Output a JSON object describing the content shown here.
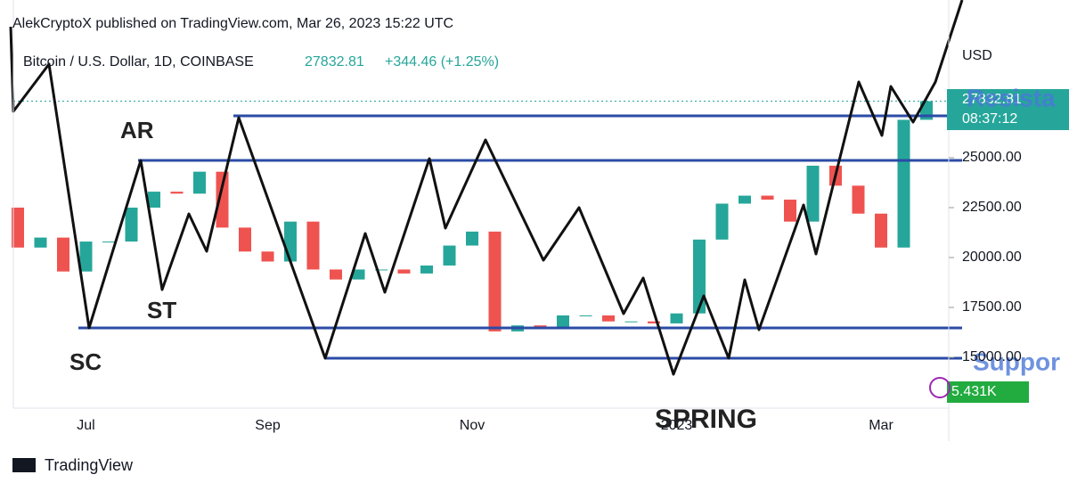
{
  "chart_data": {
    "type": "candlestick",
    "header": "AlekCryptoX published on TradingView.com, Mar 26, 2023 15:22 UTC",
    "symbol": "Bitcoin / U.S. Dollar, 1D, COINBASE",
    "change": "+344.46 (+1.25%)",
    "y_axis_label": "USD",
    "countdown": "08:37:12",
    "volume_label": "5.431K",
    "footer": "TradingView",
    "annotations": [
      "AR",
      "ST",
      "SC",
      "SPRING",
      "Resista",
      "Suppor"
    ],
    "categories": [
      null,
      null,
      null,
      "Jul",
      null,
      null,
      null,
      null,
      null,
      null,
      null,
      "Sep",
      null,
      null,
      null,
      null,
      null,
      null,
      null,
      null,
      "Nov",
      null,
      null,
      null,
      null,
      null,
      null,
      null,
      null,
      "2023",
      null,
      null,
      null,
      null,
      null,
      null,
      null,
      null,
      "Mar",
      null,
      null
    ],
    "open": [
      22500,
      20500,
      21000,
      19300,
      20800,
      20800,
      22500,
      23300,
      23200,
      24300,
      21500,
      20300,
      19800,
      21800,
      19400,
      18900,
      19400,
      19400,
      19200,
      19600,
      20600,
      21300,
      16300,
      16600,
      16500,
      17100,
      17100,
      16800,
      16800,
      16700,
      17200,
      20900,
      22700,
      23100,
      22900,
      21800,
      24600,
      23600,
      22200,
      20500,
      26900
    ],
    "close": [
      20500,
      21000,
      19300,
      20800,
      20800,
      22500,
      23300,
      23200,
      24300,
      21500,
      20300,
      19800,
      21800,
      19400,
      18900,
      19400,
      19400,
      19200,
      19600,
      20600,
      21300,
      16300,
      16600,
      16500,
      17100,
      17100,
      16800,
      16800,
      16700,
      17200,
      20900,
      22700,
      23100,
      22900,
      21800,
      24600,
      23600,
      22200,
      20500,
      26900,
      27832.81
    ],
    "up_color": "#26a69a",
    "down_color": "#ef5350",
    "ylim": [
      12455,
      32902
    ],
    "yticks": [
      {
        "value": 15000,
        "label": "15000.00"
      },
      {
        "value": 17500,
        "label": "17500.00"
      },
      {
        "value": 20000,
        "label": "20000.00"
      },
      {
        "value": 22500,
        "label": "22500.00"
      },
      {
        "value": 25000,
        "label": "25000.00"
      }
    ]
  }
}
